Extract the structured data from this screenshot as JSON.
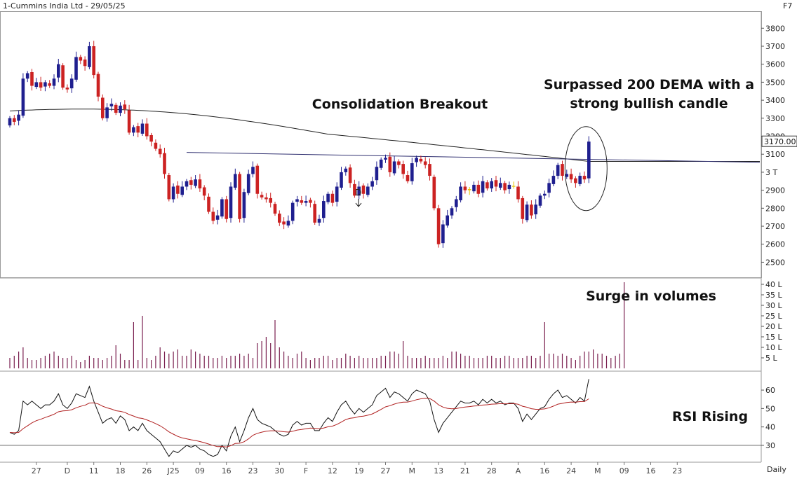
{
  "header": {
    "title": "1-Cummins India Ltd - 29/05/25",
    "hotkey": "F7"
  },
  "footer": {
    "period": "Daily"
  },
  "annotations": {
    "dema_line1": "Surpassed 200 DEMA with a",
    "dema_line2": "strong bullish candle",
    "breakout": "Consolidation Breakout",
    "volumes": "Surge in volumes",
    "rsi": "RSI Rising",
    "marker": "D"
  },
  "colors": {
    "up": "#1f1f8f",
    "down": "#cc2222",
    "doji": "#e6c200",
    "volume": "#7a1f4f",
    "rsi": "#111111",
    "rsi_avg": "#b02020",
    "dema": "#222222",
    "trendline": "#303070"
  },
  "chart_data": [
    {
      "type": "candlestick",
      "title": "1-Cummins India Ltd - 29/05/25",
      "ylim": [
        2420,
        3840
      ],
      "y_ticks": [
        2500,
        2600,
        2700,
        2800,
        2900,
        3000,
        3100,
        3200,
        3300,
        3400,
        3500,
        3600,
        3700,
        3800
      ],
      "y_tick_labels": [
        "2500",
        "2600",
        "2700",
        "2800",
        "2900",
        "3 T",
        "3100",
        "3200",
        "3300",
        "3400",
        "3500",
        "3600",
        "3700",
        "3800"
      ],
      "last_price": "3170.00",
      "x_tick_labels": [
        "27",
        "D",
        "11",
        "18",
        "26",
        "J25",
        "09",
        "16",
        "23",
        "30",
        "F",
        "12",
        "19",
        "27",
        "M",
        "13",
        "21",
        "28",
        "A",
        "16",
        "24",
        "M",
        "09",
        "16",
        "23"
      ],
      "x_tick_index": [
        6,
        13,
        19,
        25,
        31,
        37,
        43,
        49,
        55,
        61,
        67,
        73,
        79,
        85,
        91,
        97,
        103,
        109,
        115,
        121,
        127,
        133,
        139,
        145,
        151
      ],
      "close": [
        3300,
        3280,
        3320,
        3520,
        3550,
        3480,
        3500,
        3470,
        3500,
        3480,
        3520,
        3600,
        3470,
        3460,
        3520,
        3640,
        3620,
        3590,
        3700,
        3540,
        3420,
        3300,
        3360,
        3380,
        3330,
        3370,
        3350,
        3220,
        3250,
        3220,
        3270,
        3200,
        3170,
        3130,
        3100,
        2990,
        2850,
        2920,
        2880,
        2920,
        2950,
        2930,
        2960,
        2910,
        2870,
        2780,
        2730,
        2760,
        2850,
        2740,
        2920,
        2990,
        2740,
        2890,
        2990,
        3030,
        2880,
        2860,
        2850,
        2830,
        2770,
        2720,
        2710,
        2730,
        2830,
        2850,
        2830,
        2840,
        2830,
        2720,
        2740,
        2840,
        2880,
        2830,
        2920,
        3000,
        3020,
        2940,
        2870,
        2920,
        2880,
        2920,
        2950,
        3030,
        3070,
        3080,
        3000,
        3060,
        3040,
        2990,
        2950,
        3050,
        3080,
        3060,
        3040,
        2980,
        2800,
        2600,
        2710,
        2760,
        2800,
        2850,
        2920,
        2900,
        2900,
        2930,
        2880,
        2950,
        2910,
        2950,
        2920,
        2940,
        2900,
        2930,
        2920,
        2850,
        2740,
        2820,
        2760,
        2820,
        2870,
        2880,
        2940,
        2980,
        3040,
        2980,
        2990,
        2960,
        2940,
        2980,
        2960,
        3170
      ],
      "series": [
        {
          "name": "",
          "role": "open"
        },
        {
          "name": "",
          "role": "200-day DEMA",
          "values_start": 3340,
          "values_end": 3060
        }
      ],
      "trendline": {
        "from_index": 40,
        "to_index": 158,
        "value": 3110
      }
    },
    {
      "type": "bar",
      "ylim": [
        0,
        42
      ],
      "y_ticks": [
        5,
        10,
        15,
        20,
        25,
        30,
        35,
        40
      ],
      "y_tick_labels": [
        "5 L",
        "10 L",
        "15 L",
        "20 L",
        "25 L",
        "30 L",
        "35 L",
        "40 L"
      ],
      "unit": "L",
      "values": [
        5,
        6,
        8,
        10,
        5,
        4,
        4,
        5,
        6,
        7,
        8,
        6,
        5,
        5,
        6,
        4,
        3,
        4,
        6,
        5,
        5,
        4,
        5,
        6,
        11,
        7,
        4,
        4,
        22,
        4,
        25,
        5,
        4,
        6,
        10,
        8,
        7,
        8,
        9,
        6,
        6,
        9,
        8,
        7,
        6,
        6,
        5,
        5,
        6,
        5,
        6,
        6,
        7,
        6,
        7,
        5,
        12,
        13,
        15,
        12,
        23,
        10,
        8,
        6,
        5,
        7,
        8,
        5,
        4,
        5,
        5,
        6,
        6,
        4,
        5,
        5,
        7,
        6,
        5,
        6,
        5,
        5,
        5,
        5,
        6,
        6,
        8,
        8,
        7,
        13,
        6,
        5,
        5,
        5,
        6,
        5,
        5,
        5,
        6,
        5,
        8,
        8,
        7,
        6,
        6,
        5,
        5,
        5,
        6,
        6,
        5,
        5,
        6,
        6,
        5,
        5,
        5,
        6,
        6,
        5,
        6,
        22,
        7,
        7,
        6,
        7,
        6,
        5,
        4,
        6,
        8,
        8,
        9,
        7,
        7,
        6,
        5,
        6,
        7,
        41
      ]
    },
    {
      "type": "line",
      "ylim": [
        22,
        68
      ],
      "y_ticks": [
        30,
        40,
        50,
        60
      ],
      "y_tick_labels": [
        "30",
        "40",
        "50",
        "60"
      ],
      "reference_lines": [
        30,
        70
      ],
      "series": [
        {
          "name": "",
          "role": "RSI",
          "values": [
            37,
            36,
            38,
            54,
            52,
            54,
            52,
            50,
            52,
            52,
            54,
            58,
            52,
            50,
            53,
            58,
            57,
            56,
            62,
            54,
            48,
            42,
            44,
            45,
            42,
            46,
            44,
            38,
            40,
            38,
            42,
            38,
            36,
            34,
            32,
            28,
            24,
            27,
            26,
            28,
            30,
            29,
            30,
            28,
            27,
            25,
            24,
            25,
            30,
            27,
            35,
            40,
            32,
            38,
            45,
            50,
            44,
            42,
            41,
            40,
            38,
            36,
            35,
            36,
            41,
            43,
            41,
            42,
            42,
            38,
            38,
            42,
            45,
            43,
            48,
            52,
            54,
            50,
            47,
            50,
            48,
            50,
            52,
            57,
            59,
            61,
            56,
            59,
            58,
            56,
            54,
            58,
            60,
            59,
            58,
            54,
            44,
            37,
            42,
            45,
            48,
            51,
            54,
            53,
            53,
            54,
            52,
            55,
            53,
            55,
            53,
            54,
            52,
            53,
            53,
            50,
            43,
            47,
            44,
            47,
            50,
            51,
            55,
            58,
            60,
            56,
            57,
            55,
            53,
            56,
            54,
            66
          ]
        },
        {
          "name": "",
          "role": "RSI average",
          "values_start": 41,
          "values_end": 55
        }
      ]
    }
  ]
}
